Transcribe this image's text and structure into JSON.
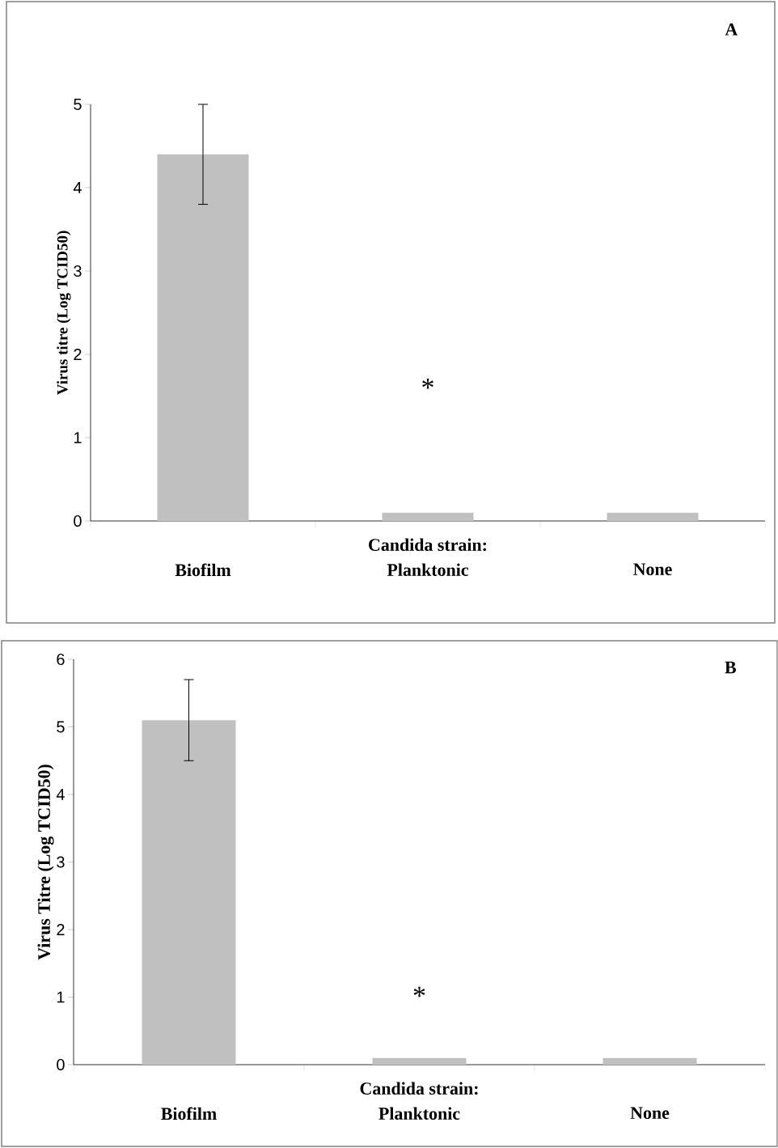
{
  "chart_data": [
    {
      "type": "bar",
      "categories": [
        "Biofilm",
        "Planktonic",
        "None"
      ],
      "values": [
        4.4,
        0.1,
        0.1
      ],
      "errors": [
        0.6,
        null,
        null
      ],
      "color": "#c0c0c0",
      "ylim": [
        0,
        5
      ],
      "yticks": [
        0,
        1,
        2,
        3,
        4,
        5
      ],
      "ylabel": "Virus titre (Log TCID50)",
      "xlabel": "Candida strain:",
      "annotations": [
        "A",
        "*"
      ]
    },
    {
      "type": "bar",
      "categories": [
        "Biofilm",
        "Planktonic",
        "None"
      ],
      "values": [
        5.1,
        0.1,
        0.1
      ],
      "errors": [
        0.6,
        null,
        null
      ],
      "color": "#c0c0c0",
      "ylim": [
        0,
        6
      ],
      "yticks": [
        0,
        1,
        2,
        3,
        4,
        5,
        6
      ],
      "ylabel": "Virus Titre (Log TCID50)",
      "xlabel": "Candida strain:",
      "annotations": [
        "B",
        "*"
      ]
    }
  ]
}
